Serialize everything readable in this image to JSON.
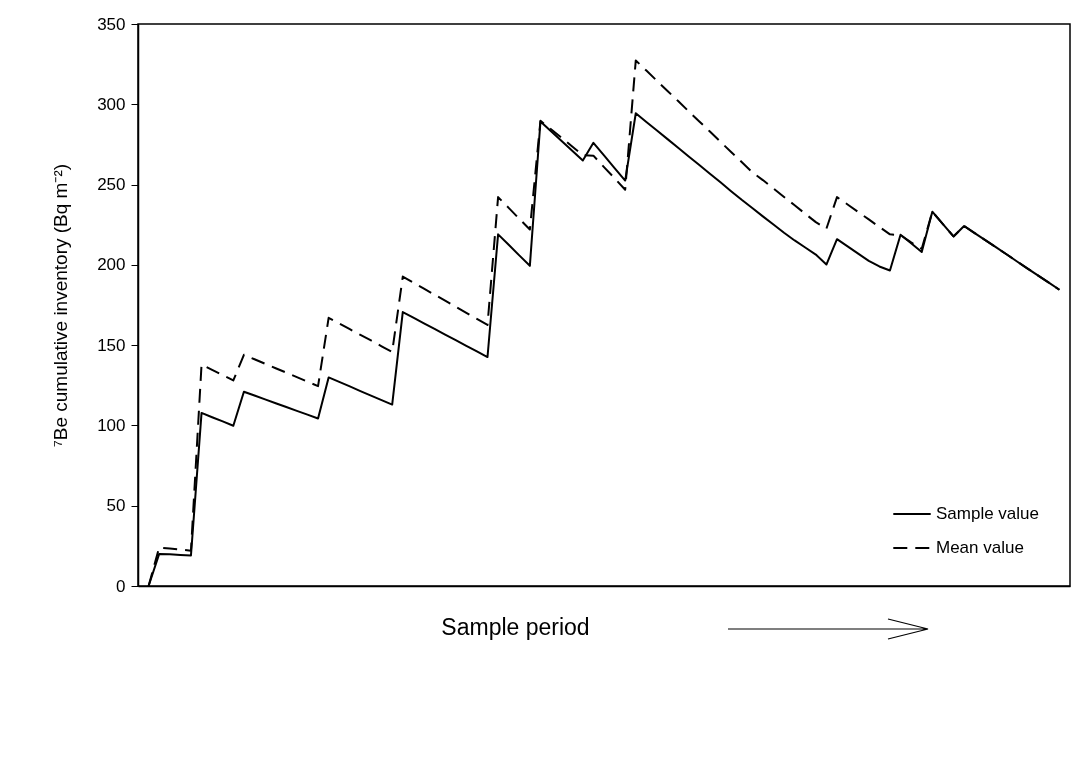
{
  "chart_data": {
    "type": "line",
    "xlabel": "Sample period",
    "ylabel": "⁷Be cumulative inventory (Bq m⁻²)",
    "categories": [
      null,
      null,
      null,
      null,
      null,
      null,
      null,
      null,
      null,
      null,
      null,
      null,
      null,
      null,
      null,
      null,
      null,
      null,
      null,
      null,
      null,
      null,
      null,
      null,
      null,
      null,
      null,
      null,
      null,
      null,
      null,
      null,
      null,
      null,
      null,
      null,
      null,
      null,
      null,
      null,
      null,
      null,
      null,
      null,
      null,
      null,
      null,
      null,
      null,
      null,
      null,
      null,
      null,
      null,
      null,
      null,
      null,
      null,
      null,
      null,
      null,
      null,
      null,
      null,
      null,
      null,
      null,
      null,
      null,
      null,
      null,
      null,
      null,
      null,
      null,
      null,
      null,
      null,
      null,
      null,
      null,
      null,
      null,
      null,
      null,
      null,
      null
    ],
    "series": [
      {
        "name": "Sample value",
        "color": "#000000",
        "line_style": "solid",
        "values": [
          0,
          20,
          19.7,
          19.3,
          19,
          107.8,
          105.1,
          102.5,
          99.8,
          121,
          118.6,
          116.2,
          113.8,
          111.5,
          109.1,
          106.7,
          104.3,
          129.9,
          127.1,
          124.3,
          121.4,
          118.6,
          115.8,
          113,
          170.6,
          167.1,
          163.6,
          160.1,
          156.6,
          153.1,
          149.6,
          146.1,
          142.6,
          219,
          212.5,
          205.9,
          199.4,
          289.3,
          283.2,
          277.1,
          271.1,
          265,
          276,
          268.2,
          260.3,
          252.5,
          294.4,
          289,
          283.7,
          278.3,
          272.9,
          267.5,
          262.2,
          256.8,
          251.4,
          245.9,
          240.5,
          235.4,
          230.2,
          225.1,
          220,
          215.2,
          210.8,
          206.4,
          200.2,
          216,
          211.5,
          207,
          202.5,
          199,
          196.5,
          218.8,
          213.4,
          208,
          233.1,
          225.4,
          217.7,
          224.2,
          219.8,
          215.4,
          211,
          206.6,
          202.1,
          197.7,
          193.3,
          188.9,
          184.5
        ]
      },
      {
        "name": "Mean value",
        "color": "#000000",
        "line_style": "dashed",
        "values": [
          0,
          24,
          23.3,
          22.7,
          22,
          137.9,
          134.6,
          131.3,
          128,
          144,
          141.2,
          138.4,
          135.6,
          132.9,
          130.1,
          127.3,
          124.5,
          167,
          163.5,
          159.9,
          156.4,
          152.9,
          149.3,
          145.8,
          192.7,
          188.9,
          185.2,
          181.4,
          177.7,
          173.9,
          170.1,
          166.4,
          162.6,
          242.2,
          235.5,
          228.7,
          222,
          289.7,
          284.4,
          279.1,
          273.7,
          268.4,
          268,
          260.9,
          253.9,
          246.8,
          327.3,
          321,
          314.6,
          308.3,
          302,
          295.6,
          289.3,
          283,
          276.6,
          270.3,
          264,
          257.6,
          252.8,
          247.6,
          242.3,
          237.1,
          231.8,
          226.6,
          222.5,
          242.2,
          237.6,
          232.9,
          228.3,
          223.6,
          219,
          218.5,
          214,
          210,
          233.1,
          225.4,
          217.7,
          224.2,
          219.8,
          215.4,
          211,
          206.6,
          202.1,
          197.7,
          193.3,
          188.9,
          184.5
        ]
      }
    ],
    "ylim": [
      0,
      350
    ],
    "yticks": [
      0,
      50,
      100,
      150,
      200,
      250,
      300,
      350
    ],
    "grid": false,
    "legend": "bottom right",
    "tick_labels": "y"
  }
}
